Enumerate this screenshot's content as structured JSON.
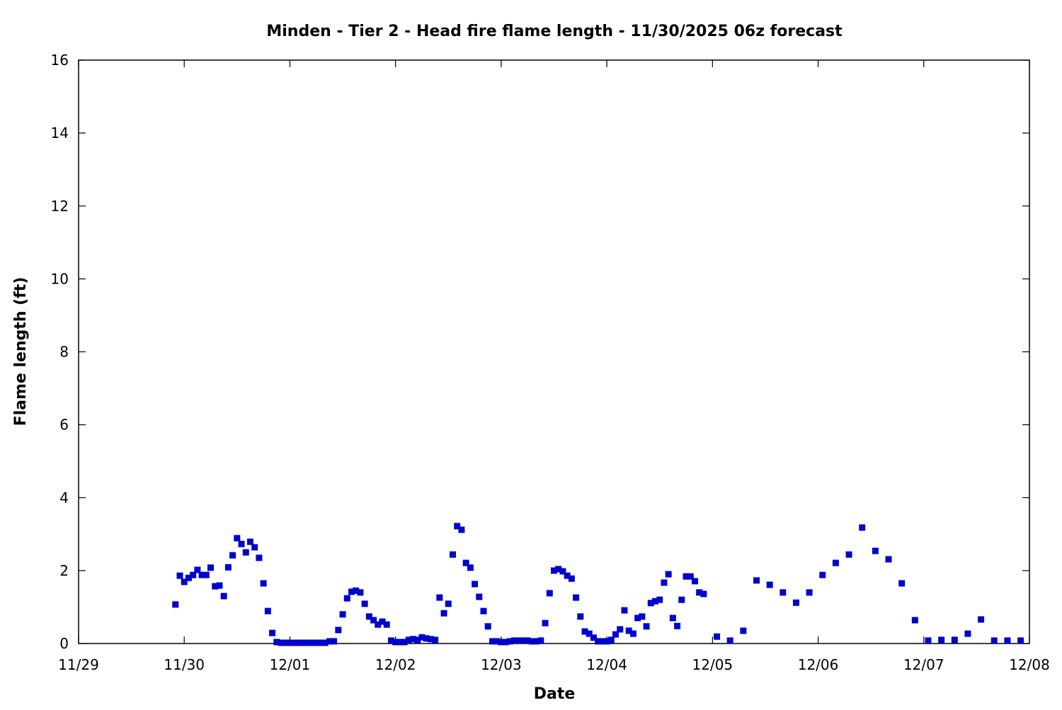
{
  "chart_data": {
    "type": "scatter",
    "title": "Minden - Tier 2 - Head fire flame length - 11/30/2025 06z forecast",
    "xlabel": "Date",
    "ylabel": "Flame length (ft)",
    "xlim": [
      "2025-11-29 00:00",
      "2025-12-08 00:00"
    ],
    "ylim": [
      0,
      16
    ],
    "x_ticks": [
      "11/29",
      "11/30",
      "12/01",
      "12/02",
      "12/03",
      "12/04",
      "12/05",
      "12/06",
      "12/07",
      "12/08"
    ],
    "y_ticks": [
      "0",
      "2",
      "4",
      "6",
      "8",
      "10",
      "12",
      "14",
      "16"
    ],
    "grid": false,
    "marker": "square",
    "color": "#0000cc",
    "x": [
      "2025-11-29 22:00",
      "2025-11-29 23:00",
      "2025-11-30 00:00",
      "2025-11-30 01:00",
      "2025-11-30 02:00",
      "2025-11-30 03:00",
      "2025-11-30 04:00",
      "2025-11-30 05:00",
      "2025-11-30 06:00",
      "2025-11-30 07:00",
      "2025-11-30 08:00",
      "2025-11-30 09:00",
      "2025-11-30 10:00",
      "2025-11-30 11:00",
      "2025-11-30 12:00",
      "2025-11-30 13:00",
      "2025-11-30 14:00",
      "2025-11-30 15:00",
      "2025-11-30 16:00",
      "2025-11-30 17:00",
      "2025-11-30 18:00",
      "2025-11-30 19:00",
      "2025-11-30 20:00",
      "2025-11-30 21:00",
      "2025-11-30 22:00",
      "2025-11-30 23:00",
      "2025-12-01 00:00",
      "2025-12-01 01:00",
      "2025-12-01 02:00",
      "2025-12-01 03:00",
      "2025-12-01 04:00",
      "2025-12-01 05:00",
      "2025-12-01 06:00",
      "2025-12-01 07:00",
      "2025-12-01 08:00",
      "2025-12-01 09:00",
      "2025-12-01 10:00",
      "2025-12-01 11:00",
      "2025-12-01 12:00",
      "2025-12-01 13:00",
      "2025-12-01 14:00",
      "2025-12-01 15:00",
      "2025-12-01 16:00",
      "2025-12-01 17:00",
      "2025-12-01 18:00",
      "2025-12-01 19:00",
      "2025-12-01 20:00",
      "2025-12-01 21:00",
      "2025-12-01 22:00",
      "2025-12-01 23:00",
      "2025-12-02 00:00",
      "2025-12-02 01:00",
      "2025-12-02 02:00",
      "2025-12-02 03:00",
      "2025-12-02 04:00",
      "2025-12-02 05:00",
      "2025-12-02 06:00",
      "2025-12-02 07:00",
      "2025-12-02 08:00",
      "2025-12-02 09:00",
      "2025-12-02 10:00",
      "2025-12-02 11:00",
      "2025-12-02 12:00",
      "2025-12-02 13:00",
      "2025-12-02 14:00",
      "2025-12-02 15:00",
      "2025-12-02 16:00",
      "2025-12-02 17:00",
      "2025-12-02 18:00",
      "2025-12-02 19:00",
      "2025-12-02 20:00",
      "2025-12-02 21:00",
      "2025-12-02 22:00",
      "2025-12-02 23:00",
      "2025-12-03 00:00",
      "2025-12-03 01:00",
      "2025-12-03 02:00",
      "2025-12-03 03:00",
      "2025-12-03 04:00",
      "2025-12-03 05:00",
      "2025-12-03 06:00",
      "2025-12-03 07:00",
      "2025-12-03 08:00",
      "2025-12-03 09:00",
      "2025-12-03 10:00",
      "2025-12-03 11:00",
      "2025-12-03 12:00",
      "2025-12-03 13:00",
      "2025-12-03 14:00",
      "2025-12-03 15:00",
      "2025-12-03 16:00",
      "2025-12-03 17:00",
      "2025-12-03 18:00",
      "2025-12-03 19:00",
      "2025-12-03 20:00",
      "2025-12-03 21:00",
      "2025-12-03 22:00",
      "2025-12-03 23:00",
      "2025-12-04 00:00",
      "2025-12-04 01:00",
      "2025-12-04 02:00",
      "2025-12-04 03:00",
      "2025-12-04 04:00",
      "2025-12-04 05:00",
      "2025-12-04 06:00",
      "2025-12-04 07:00",
      "2025-12-04 08:00",
      "2025-12-04 09:00",
      "2025-12-04 10:00",
      "2025-12-04 11:00",
      "2025-12-04 12:00",
      "2025-12-04 13:00",
      "2025-12-04 14:00",
      "2025-12-04 15:00",
      "2025-12-04 16:00",
      "2025-12-04 17:00",
      "2025-12-04 18:00",
      "2025-12-04 19:00",
      "2025-12-04 20:00",
      "2025-12-04 21:00",
      "2025-12-04 22:00",
      "2025-12-05 01:00",
      "2025-12-05 04:00",
      "2025-12-05 07:00",
      "2025-12-05 10:00",
      "2025-12-05 13:00",
      "2025-12-05 16:00",
      "2025-12-05 19:00",
      "2025-12-05 22:00",
      "2025-12-06 01:00",
      "2025-12-06 04:00",
      "2025-12-06 07:00",
      "2025-12-06 10:00",
      "2025-12-06 13:00",
      "2025-12-06 16:00",
      "2025-12-06 19:00",
      "2025-12-06 22:00",
      "2025-12-07 01:00",
      "2025-12-07 04:00",
      "2025-12-07 07:00",
      "2025-12-07 10:00",
      "2025-12-07 13:00",
      "2025-12-07 16:00",
      "2025-12-07 19:00",
      "2025-12-07 22:00"
    ],
    "y": [
      1.07,
      1.86,
      1.69,
      1.8,
      1.88,
      2.02,
      1.88,
      1.88,
      2.08,
      1.57,
      1.59,
      1.3,
      2.09,
      2.42,
      2.89,
      2.73,
      2.5,
      2.79,
      2.64,
      2.35,
      1.65,
      0.89,
      0.29,
      0.04,
      0.02,
      0.02,
      0.02,
      0.02,
      0.02,
      0.02,
      0.02,
      0.02,
      0.02,
      0.02,
      0.02,
      0.06,
      0.06,
      0.37,
      0.8,
      1.24,
      1.42,
      1.45,
      1.4,
      1.09,
      0.74,
      0.64,
      0.52,
      0.6,
      0.52,
      0.08,
      0.04,
      0.04,
      0.04,
      0.1,
      0.12,
      0.1,
      0.17,
      0.14,
      0.12,
      0.1,
      1.26,
      0.83,
      1.09,
      2.44,
      3.22,
      3.12,
      2.21,
      2.08,
      1.63,
      1.28,
      0.89,
      0.47,
      0.06,
      0.06,
      0.04,
      0.04,
      0.06,
      0.08,
      0.08,
      0.08,
      0.08,
      0.06,
      0.06,
      0.08,
      0.56,
      1.38,
      2.0,
      2.04,
      1.98,
      1.86,
      1.78,
      1.26,
      0.74,
      0.33,
      0.27,
      0.16,
      0.06,
      0.06,
      0.06,
      0.1,
      0.25,
      0.39,
      0.91,
      0.35,
      0.27,
      0.7,
      0.74,
      0.47,
      1.11,
      1.16,
      1.2,
      1.67,
      1.9,
      0.7,
      0.48,
      1.2,
      1.84,
      1.84,
      1.71,
      1.4,
      1.36,
      0.19,
      0.08,
      0.35,
      1.73,
      1.61,
      1.4,
      1.12,
      1.4,
      1.88,
      2.21,
      2.44,
      3.18,
      2.54,
      2.31,
      1.65,
      0.64,
      0.08,
      0.1,
      0.1,
      0.27,
      0.66,
      0.08,
      0.08,
      0.08
    ]
  }
}
